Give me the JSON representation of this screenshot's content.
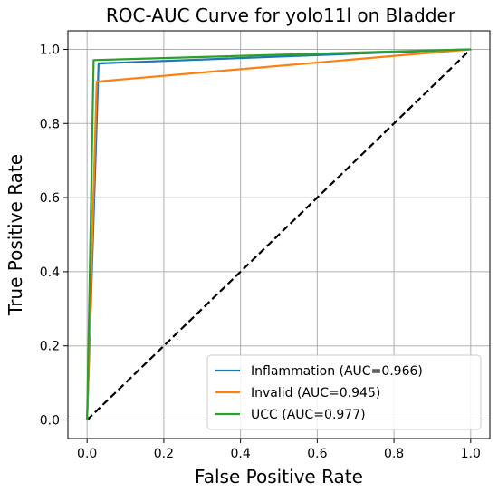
{
  "chart_data": {
    "type": "line",
    "title": "ROC-AUC Curve for yolo11l on Bladder",
    "xlabel": "False Positive Rate",
    "ylabel": "True Positive Rate",
    "xlim": [
      -0.05,
      1.05
    ],
    "ylim": [
      -0.05,
      1.05
    ],
    "xticks": [
      0.0,
      0.2,
      0.4,
      0.6,
      0.8,
      1.0
    ],
    "yticks": [
      0.0,
      0.2,
      0.4,
      0.6,
      0.8,
      1.0
    ],
    "xtick_labels": [
      "0.0",
      "0.2",
      "0.4",
      "0.6",
      "0.8",
      "1.0"
    ],
    "ytick_labels": [
      "0.0",
      "0.2",
      "0.4",
      "0.6",
      "0.8",
      "1.0"
    ],
    "grid": true,
    "legend_position": "lower-right",
    "series": [
      {
        "name": "Inflammation (AUC=0.966)",
        "color": "#1f77b4",
        "x": [
          0.0,
          0.03,
          1.0
        ],
        "y": [
          0.0,
          0.962,
          1.0
        ]
      },
      {
        "name": "Invalid (AUC=0.945)",
        "color": "#ff7f0e",
        "x": [
          0.0,
          0.025,
          1.0
        ],
        "y": [
          0.0,
          0.913,
          1.0
        ]
      },
      {
        "name": "UCC (AUC=0.977)",
        "color": "#2ca02c",
        "x": [
          0.0,
          0.017,
          1.0
        ],
        "y": [
          0.0,
          0.971,
          1.0
        ]
      }
    ],
    "reference_line": {
      "style": "dashed",
      "color": "#000000",
      "x": [
        0.0,
        1.0
      ],
      "y": [
        0.0,
        1.0
      ]
    }
  }
}
